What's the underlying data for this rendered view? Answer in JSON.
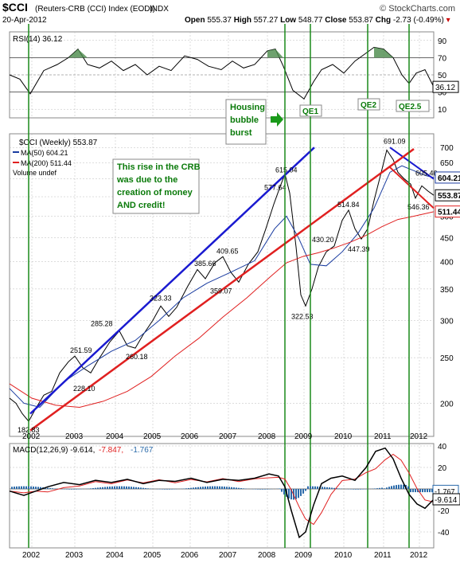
{
  "header": {
    "symbol": "$CCI",
    "name": "(Reuters-CRB (CCI) Index (EOD))",
    "exchange": "INDX",
    "date": "20-Apr-2012",
    "source": "© StockCharts.com",
    "open_label": "Open",
    "open": "555.37",
    "high_label": "High",
    "high": "557.27",
    "low_label": "Low",
    "low": "548.77",
    "close_label": "Close",
    "close": "553.87",
    "chg_label": "Chg",
    "chg": "-2.73 (-0.49%)"
  },
  "rsi_panel": {
    "label": "RSI(14) 36.12",
    "value_badge": "36.12",
    "ticks": [
      "90",
      "70",
      "50",
      "30",
      "10"
    ]
  },
  "main_panel": {
    "legend": {
      "title": "$CCI (Weekly) 553.87",
      "ma50": "MA(50) 604.21",
      "ma200": "MA(200) 511.44",
      "volume": "Volume undef"
    },
    "badges": {
      "ma50": "604.21",
      "close": "553.87",
      "ma200": "511.44"
    },
    "annotations": {
      "crb_note": [
        "This rise in the CRB",
        "was due to the",
        "creation of money",
        "AND credit!"
      ],
      "housing": [
        "Housing",
        "bubble",
        "burst"
      ],
      "qe1": "QE1",
      "qe2": "QE2",
      "qe25": "QE2.5"
    },
    "y_ticks": [
      "700",
      "650",
      "600",
      "550",
      "500",
      "450",
      "400",
      "350",
      "300",
      "250",
      "200"
    ],
    "point_labels": [
      "182.83",
      "251.59",
      "228.10",
      "285.28",
      "260.18",
      "323.33",
      "385.66",
      "409.65",
      "359.07",
      "577.64",
      "615.04",
      "322.53",
      "430.20",
      "514.84",
      "447.39",
      "691.09",
      "605.46",
      "546.36"
    ]
  },
  "macd_panel": {
    "label": "MACD(12,26,9) -9.614, -7.847, -1.767",
    "label_main": "MACD(12,26,9) -9.614,",
    "label_signal": "-7.847,",
    "label_hist": "-1.767",
    "badge_hist": "-1.767",
    "badge_macd": "-9.614",
    "ticks": [
      "40",
      "20",
      "0",
      "-20",
      "-40"
    ]
  },
  "x_labels": [
    "2002",
    "2003",
    "2004",
    "2005",
    "2006",
    "2007",
    "2008",
    "2009",
    "2010",
    "2011",
    "2012"
  ],
  "colors": {
    "price": "#000000",
    "ma50": "#1a3ca0",
    "ma200": "#e02020",
    "trend_blue": "#1a1ad0",
    "trend_red": "#e02020",
    "vline": "#1a8a1a",
    "annotation_text": "#0a7a0a",
    "grid": "#bbbbbb"
  },
  "chart_data": [
    {
      "type": "line",
      "title": "RSI(14) 36.12",
      "ylim": [
        0,
        100
      ],
      "reference_lines": [
        70,
        50,
        30
      ],
      "x": [
        "2002",
        "2003",
        "2004",
        "2005",
        "2006",
        "2007",
        "2008",
        "2009",
        "2010",
        "2011",
        "2012"
      ],
      "series": [
        {
          "name": "RSI(14)",
          "values": [
            30,
            62,
            68,
            55,
            65,
            58,
            80,
            28,
            60,
            80,
            36
          ]
        }
      ]
    },
    {
      "type": "line",
      "title": "$CCI (Weekly) 553.87",
      "yscale": "log",
      "ylim": [
        170,
        720
      ],
      "x": [
        "2001.5",
        "2002",
        "2003",
        "2004",
        "2005",
        "2006",
        "2007",
        "2008",
        "2008.5",
        "2009",
        "2010",
        "2011",
        "2011.3",
        "2012",
        "2012.3"
      ],
      "series": [
        {
          "name": "$CCI",
          "values": [
            205,
            183,
            240,
            270,
            300,
            330,
            360,
            460,
            615,
            322,
            460,
            640,
            691,
            600,
            554
          ]
        },
        {
          "name": "MA(50)",
          "values": [
            195,
            200,
            225,
            255,
            290,
            325,
            355,
            430,
            510,
            420,
            440,
            560,
            640,
            630,
            604
          ]
        },
        {
          "name": "MA(200)",
          "values": [
            210,
            195,
            190,
            205,
            225,
            260,
            300,
            350,
            400,
            420,
            440,
            470,
            490,
            505,
            511
          ]
        }
      ],
      "annotations": [
        "This rise in the CRB was due to the creation of money AND credit!",
        "Housing bubble burst",
        "QE1",
        "QE2",
        "QE2.5"
      ]
    },
    {
      "type": "line",
      "title": "MACD(12,26,9) -9.614, -7.847, -1.767",
      "ylim": [
        -50,
        50
      ],
      "x": [
        "2002",
        "2003",
        "2004",
        "2005",
        "2006",
        "2007",
        "2008",
        "2009",
        "2010",
        "2011",
        "2012"
      ],
      "series": [
        {
          "name": "MACD",
          "values": [
            0,
            2,
            5,
            4,
            8,
            6,
            14,
            -45,
            10,
            38,
            -9.614
          ]
        },
        {
          "name": "Signal",
          "values": [
            0,
            1,
            4,
            4,
            7,
            6,
            12,
            -35,
            8,
            35,
            -7.847
          ]
        },
        {
          "name": "Histogram",
          "values": [
            0,
            1,
            1,
            0,
            1,
            0,
            2,
            -10,
            2,
            3,
            -1.767
          ]
        }
      ]
    }
  ]
}
